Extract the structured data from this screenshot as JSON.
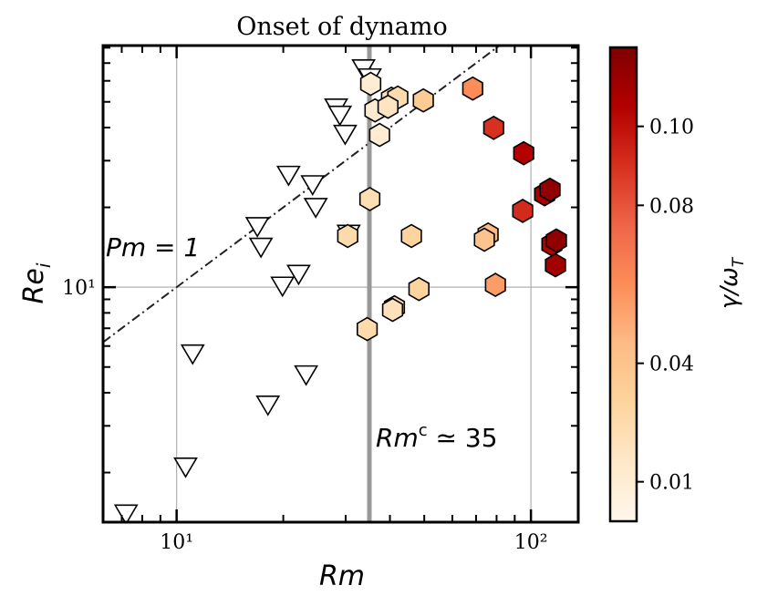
{
  "chart_data": {
    "type": "scatter",
    "title": "Onset of dynamo",
    "x_label": "Rm",
    "y_label": {
      "main": "Re",
      "sub": "i"
    },
    "colorbar_label": {
      "main": "γ/ω",
      "sub": "T"
    },
    "log_x": true,
    "log_y": true,
    "grid": true,
    "xlim": [
      6.2,
      136
    ],
    "ylim": [
      1.3,
      81.5
    ],
    "xticks": [
      {
        "value": 10,
        "label": "10¹"
      },
      {
        "value": 100,
        "label": "10²"
      }
    ],
    "yticks": [
      {
        "value": 10,
        "label": "10¹"
      }
    ],
    "clim": [
      0,
      0.12
    ],
    "cticks": [
      0.01,
      0.04,
      0.08,
      {
        "value": 0.1,
        "label": "0.10"
      }
    ],
    "colormap": [
      "#fff7ec",
      "#fee8c8",
      "#fdd49e",
      "#fdbb84",
      "#fc8d59",
      "#ef6548",
      "#d7301f",
      "#b30000",
      "#7f0000"
    ],
    "dynamo": {
      "rm": [
        35.3,
        40.4,
        42.1,
        36.3,
        39.5,
        49.7,
        68.5,
        78.5,
        95.4,
        37.4,
        35.1,
        30.4,
        46.0,
        75.7,
        73.9,
        109.3,
        113.2,
        94.8,
        114.6,
        118.0,
        117.3,
        79.4,
        48.3,
        41.2,
        40.7,
        34.5
      ],
      "re": [
        58.4,
        51.4,
        51.9,
        46.4,
        47.9,
        50.6,
        56.1,
        39.9,
        32.0,
        37.5,
        21.5,
        15.6,
        15.6,
        15.8,
        15.1,
        22.4,
        23.3,
        19.4,
        14.5,
        15.0,
        12.1,
        10.2,
        9.84,
        8.4,
        8.21,
        6.95
      ],
      "gamma": [
        0.01,
        0.02,
        0.025,
        0.012,
        0.018,
        0.035,
        0.06,
        0.09,
        0.105,
        0.01,
        0.022,
        0.025,
        0.03,
        0.045,
        0.04,
        0.108,
        0.115,
        0.092,
        0.105,
        0.115,
        0.11,
        0.055,
        0.03,
        0.025,
        0.02,
        0.025
      ]
    },
    "no_dynamo": {
      "rm": [
        33.7,
        35.1,
        28.2,
        28.9,
        29.9,
        20.7,
        24.2,
        24.7,
        16.9,
        17.3,
        22.1,
        19.9,
        30.6,
        11.1,
        23.2,
        18.1,
        10.6,
        7.2
      ],
      "re": [
        67.3,
        62.2,
        47.9,
        45.0,
        38.1,
        26.7,
        24.6,
        20.2,
        17.1,
        14.3,
        11.3,
        10.2,
        16.0,
        5.66,
        4.72,
        3.63,
        2.12,
        1.41
      ]
    },
    "rm_critical": 35,
    "annotations": {
      "pm_line": "Pm = 1",
      "rm_critical": {
        "main": "Rm",
        "sup": "c",
        "rest": " ≃ 35"
      }
    }
  }
}
